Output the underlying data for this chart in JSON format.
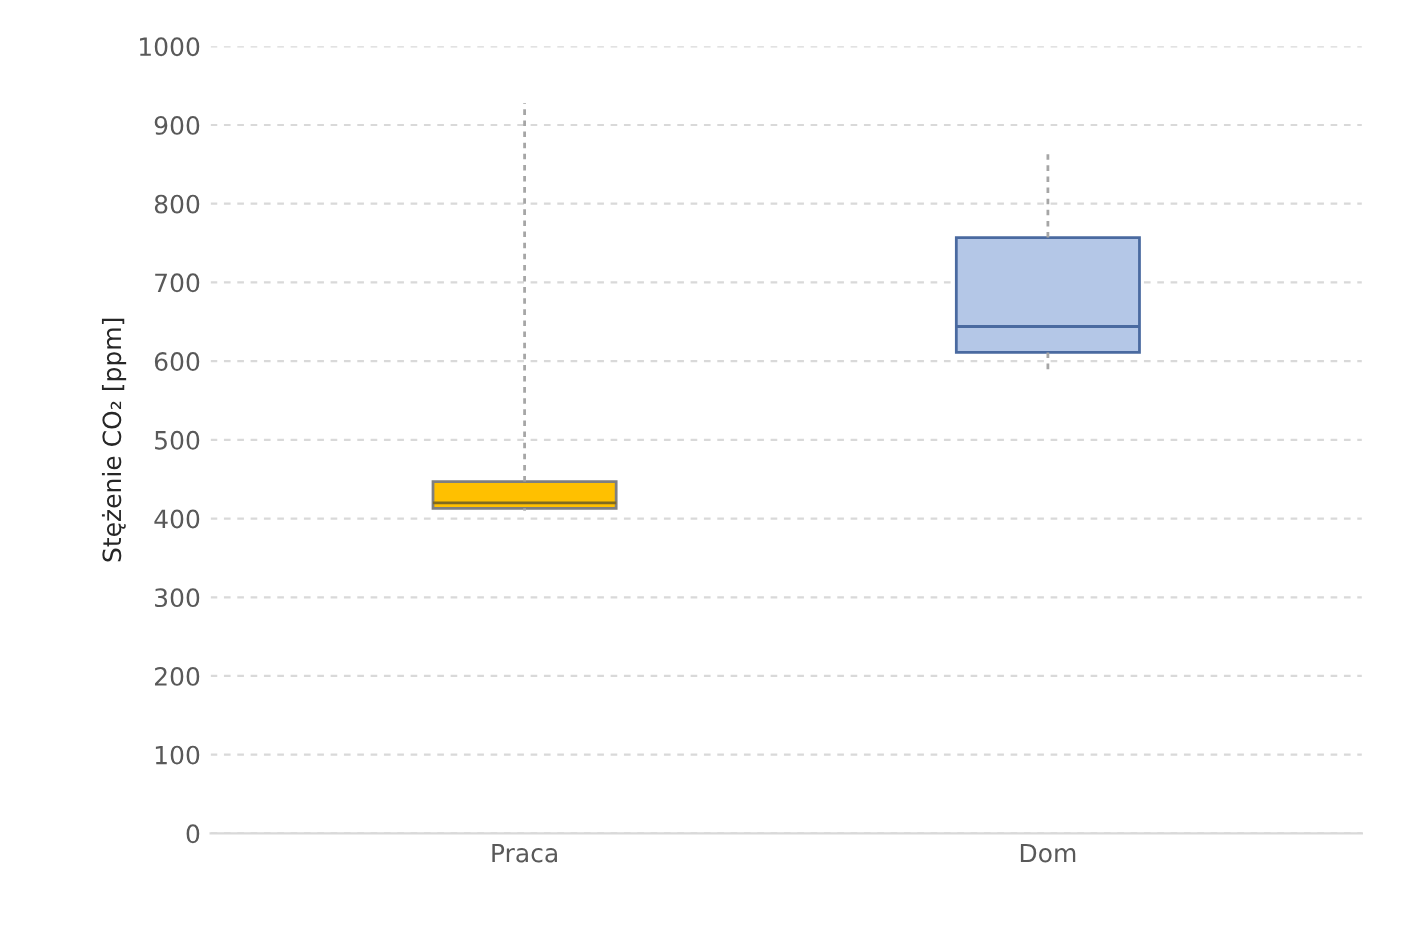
{
  "chart_data": {
    "type": "box",
    "ylabel": "Stężenie CO₂ [ppm]",
    "categories": [
      "Praca",
      "Dom"
    ],
    "boxes": [
      {
        "low": 410,
        "q1": 413,
        "median": 420,
        "q3": 447,
        "high": 928
      },
      {
        "low": 586,
        "q1": 611,
        "median": 644,
        "q3": 757,
        "high": 865
      }
    ],
    "colors": [
      "#ffc000",
      "#b4c7e7"
    ],
    "ylim": [
      0,
      1000
    ],
    "yticks": [
      0,
      100,
      200,
      300,
      400,
      500,
      600,
      700,
      800,
      900,
      1000
    ],
    "grid": "y"
  }
}
